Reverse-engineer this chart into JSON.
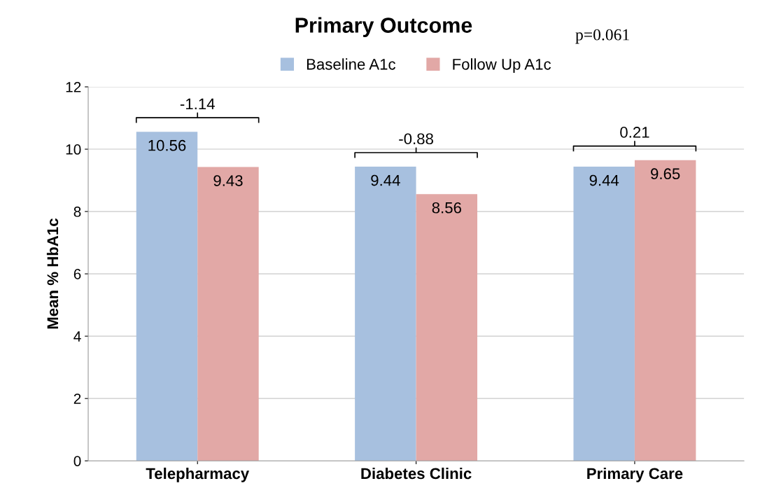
{
  "chart_data": {
    "type": "bar",
    "title": "Primary Outcome",
    "ylabel": "Mean % HbA1c",
    "categories": [
      "Telepharmacy",
      "Diabetes Clinic",
      "Primary Care"
    ],
    "series": [
      {
        "name": "Baseline A1c",
        "color": "#a7c0df",
        "values": [
          10.56,
          9.44,
          9.44
        ]
      },
      {
        "name": "Follow Up A1c",
        "color": "#e2a8a6",
        "values": [
          9.43,
          8.56,
          9.65
        ]
      }
    ],
    "ylim": [
      0,
      12
    ],
    "yticks": [
      0,
      2,
      4,
      6,
      8,
      10,
      12
    ],
    "grid": "y",
    "legend": "top",
    "data_labels": true,
    "annotations": [
      "-1.14",
      "-0.88",
      "0.21",
      "p=0.061"
    ]
  }
}
